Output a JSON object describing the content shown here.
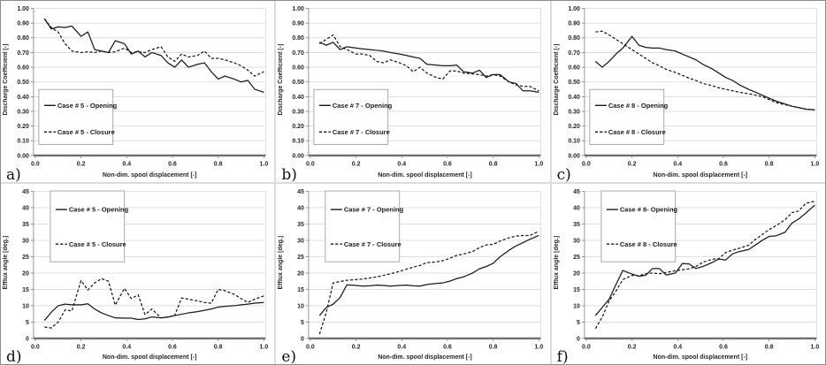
{
  "colors": {
    "line": "#1a1a1a",
    "grid": "#d9d9d9",
    "axis": "#6f6f6f",
    "tick": "#7f7f7f",
    "legend_border": "#a0a0a0",
    "background": "#ffffff"
  },
  "chart_data": [
    {
      "type": "line",
      "panel_label": "a)",
      "xlabel": "Non-dim. spool displacement [-]",
      "ylabel": "Discharge Coefficient [-]",
      "xlim": [
        0.0,
        1.0
      ],
      "ylim": [
        0.0,
        1.0
      ],
      "ystep": 0.1,
      "ydecimals": 2,
      "xticks": [
        "0.0",
        "0.2",
        "0.4",
        "0.6",
        "0.8",
        "1.0"
      ],
      "grid": "horizontal",
      "legend_position": "left-middle",
      "x": [
        0.04,
        0.07,
        0.1,
        0.13,
        0.16,
        0.2,
        0.23,
        0.26,
        0.29,
        0.32,
        0.35,
        0.39,
        0.42,
        0.45,
        0.48,
        0.51,
        0.55,
        0.58,
        0.61,
        0.64,
        0.67,
        0.71,
        0.74,
        0.77,
        0.8,
        0.83,
        0.87,
        0.9,
        0.93,
        0.96,
        1.0
      ],
      "series": [
        {
          "name": "Case # 5 - Opening",
          "style": "solid",
          "values": [
            0.93,
            0.86,
            0.875,
            0.87,
            0.88,
            0.81,
            0.84,
            0.72,
            0.71,
            0.7,
            0.78,
            0.76,
            0.69,
            0.71,
            0.67,
            0.7,
            0.68,
            0.63,
            0.6,
            0.65,
            0.6,
            0.62,
            0.63,
            0.57,
            0.52,
            0.54,
            0.52,
            0.5,
            0.51,
            0.45,
            0.43
          ]
        },
        {
          "name": "Case # 5 - Closure",
          "style": "dashed",
          "values": [
            0.93,
            0.87,
            0.84,
            0.76,
            0.71,
            0.7,
            0.705,
            0.7,
            0.71,
            0.7,
            0.705,
            0.73,
            0.7,
            0.705,
            0.7,
            0.72,
            0.74,
            0.67,
            0.64,
            0.69,
            0.67,
            0.68,
            0.71,
            0.66,
            0.66,
            0.65,
            0.63,
            0.61,
            0.58,
            0.54,
            0.57
          ]
        }
      ]
    },
    {
      "type": "line",
      "panel_label": "b)",
      "xlabel": "Non-dim. spool displacement [-]",
      "ylabel": "Discharge Coefficient [-]",
      "xlim": [
        0.0,
        1.0
      ],
      "ylim": [
        0.0,
        1.0
      ],
      "ystep": 0.1,
      "ydecimals": 2,
      "xticks": [
        "0.0",
        "0.2",
        "0.4",
        "0.6",
        "0.8",
        "1.0"
      ],
      "grid": "horizontal",
      "legend_position": "left-middle",
      "x": [
        0.04,
        0.07,
        0.1,
        0.13,
        0.16,
        0.2,
        0.23,
        0.26,
        0.29,
        0.32,
        0.35,
        0.39,
        0.42,
        0.45,
        0.48,
        0.51,
        0.55,
        0.58,
        0.61,
        0.64,
        0.67,
        0.71,
        0.74,
        0.77,
        0.8,
        0.83,
        0.87,
        0.9,
        0.93,
        0.96,
        1.0
      ],
      "series": [
        {
          "name": "Case # 7 - Opening",
          "style": "solid",
          "values": [
            0.77,
            0.75,
            0.77,
            0.72,
            0.74,
            0.73,
            0.725,
            0.72,
            0.715,
            0.71,
            0.7,
            0.69,
            0.68,
            0.67,
            0.66,
            0.62,
            0.615,
            0.61,
            0.61,
            0.615,
            0.57,
            0.56,
            0.58,
            0.53,
            0.55,
            0.55,
            0.5,
            0.49,
            0.44,
            0.44,
            0.43
          ]
        },
        {
          "name": "Case # 7 - Closure",
          "style": "dashed",
          "values": [
            0.76,
            0.79,
            0.82,
            0.74,
            0.72,
            0.69,
            0.69,
            0.68,
            0.64,
            0.63,
            0.65,
            0.63,
            0.61,
            0.57,
            0.6,
            0.56,
            0.53,
            0.52,
            0.575,
            0.575,
            0.56,
            0.555,
            0.55,
            0.54,
            0.55,
            0.54,
            0.5,
            0.48,
            0.47,
            0.47,
            0.44
          ]
        }
      ]
    },
    {
      "type": "line",
      "panel_label": "c)",
      "xlabel": "Non-dim. spool displacement [-]",
      "ylabel": "Discharge Coefficient [-]",
      "xlim": [
        0.0,
        1.0
      ],
      "ylim": [
        0.0,
        1.0
      ],
      "ystep": 0.1,
      "ydecimals": 2,
      "xticks": [
        "0.0",
        "0.2",
        "0.4",
        "0.6",
        "0.8",
        "1.0"
      ],
      "grid": "horizontal",
      "legend_position": "left-middle",
      "x": [
        0.04,
        0.07,
        0.1,
        0.13,
        0.16,
        0.2,
        0.23,
        0.26,
        0.29,
        0.32,
        0.35,
        0.39,
        0.42,
        0.45,
        0.48,
        0.51,
        0.55,
        0.58,
        0.61,
        0.64,
        0.67,
        0.71,
        0.74,
        0.77,
        0.8,
        0.83,
        0.87,
        0.9,
        0.93,
        0.96,
        1.0
      ],
      "series": [
        {
          "name": "Case # 8 - Opening",
          "style": "solid",
          "values": [
            0.64,
            0.6,
            0.64,
            0.69,
            0.73,
            0.81,
            0.75,
            0.735,
            0.73,
            0.73,
            0.72,
            0.71,
            0.69,
            0.67,
            0.65,
            0.62,
            0.59,
            0.56,
            0.53,
            0.51,
            0.48,
            0.45,
            0.43,
            0.41,
            0.39,
            0.37,
            0.35,
            0.335,
            0.325,
            0.315,
            0.31
          ]
        },
        {
          "name": "Case # 8 - Closure",
          "style": "dashed",
          "values": [
            0.84,
            0.845,
            0.82,
            0.79,
            0.76,
            0.72,
            0.69,
            0.66,
            0.63,
            0.61,
            0.585,
            0.565,
            0.545,
            0.525,
            0.51,
            0.49,
            0.475,
            0.46,
            0.45,
            0.44,
            0.43,
            0.42,
            0.41,
            0.4,
            0.38,
            0.36,
            0.345,
            0.335,
            0.325,
            0.315,
            0.31
          ]
        }
      ]
    },
    {
      "type": "line",
      "panel_label": "d)",
      "xlabel": "Non-dim. spool displacement [-]",
      "ylabel": "Efflux angle [deg.]",
      "xlim": [
        0.0,
        1.0
      ],
      "ylim": [
        0,
        45
      ],
      "ystep": 5,
      "ydecimals": 0,
      "xticks": [
        "0.0",
        "0.2",
        "0.4",
        "0.6",
        "0.8",
        "1.0"
      ],
      "grid": "horizontal",
      "legend_position": "top-left",
      "x": [
        0.04,
        0.07,
        0.1,
        0.13,
        0.16,
        0.2,
        0.23,
        0.26,
        0.29,
        0.32,
        0.35,
        0.39,
        0.42,
        0.45,
        0.48,
        0.51,
        0.55,
        0.58,
        0.61,
        0.64,
        0.67,
        0.71,
        0.74,
        0.77,
        0.8,
        0.83,
        0.87,
        0.9,
        0.93,
        0.96,
        1.0
      ],
      "series": [
        {
          "name": "Case # 5 - Opening",
          "style": "solid",
          "values": [
            5.5,
            8,
            10,
            10.5,
            10.3,
            10.3,
            10.6,
            9,
            7.8,
            7,
            6.3,
            6.2,
            6.2,
            5.8,
            6,
            6.6,
            6.3,
            6.5,
            7,
            7.4,
            7.8,
            8.2,
            8.6,
            9,
            9.6,
            9.8,
            10,
            10.3,
            10.5,
            10.8,
            11
          ]
        },
        {
          "name": "Case # 5 - Closure",
          "style": "dashed",
          "values": [
            3.5,
            3.2,
            5,
            8.7,
            8.4,
            17.7,
            14.8,
            17,
            18.3,
            17.5,
            10.2,
            15.3,
            12.2,
            13.3,
            7.3,
            9,
            6.3,
            6.6,
            7,
            12.4,
            12,
            11.5,
            11,
            10.8,
            15,
            14.6,
            13.5,
            12.2,
            11,
            12,
            13
          ]
        }
      ]
    },
    {
      "type": "line",
      "panel_label": "e)",
      "xlabel": "Non-dim. spool displacement [-]",
      "ylabel": "Efflux angle [deg.]",
      "xlim": [
        0.0,
        1.0
      ],
      "ylim": [
        0,
        45
      ],
      "ystep": 5,
      "ydecimals": 0,
      "xticks": [
        "0.0",
        "0.2",
        "0.4",
        "0.6",
        "0.8",
        "1.0"
      ],
      "grid": "horizontal",
      "legend_position": "top-left",
      "x": [
        0.04,
        0.07,
        0.1,
        0.13,
        0.16,
        0.2,
        0.23,
        0.26,
        0.29,
        0.32,
        0.35,
        0.39,
        0.42,
        0.45,
        0.48,
        0.51,
        0.55,
        0.58,
        0.61,
        0.64,
        0.67,
        0.71,
        0.74,
        0.77,
        0.8,
        0.83,
        0.87,
        0.9,
        0.93,
        0.96,
        1.0
      ],
      "series": [
        {
          "name": "Case # 7 - Opening",
          "style": "solid",
          "values": [
            7,
            9.5,
            10.5,
            12.5,
            16.4,
            16.2,
            16,
            16.1,
            16.3,
            16.2,
            16,
            16.2,
            16.3,
            16.1,
            16,
            16.5,
            16.8,
            17,
            17.5,
            18.3,
            18.8,
            20,
            21.3,
            22,
            23,
            25,
            27,
            28.3,
            29.3,
            30.3,
            31.5
          ]
        },
        {
          "name": "Case # 7 - Closure",
          "style": "dashed",
          "values": [
            1.3,
            8,
            17,
            17.4,
            17.8,
            18,
            18.2,
            18.5,
            18.8,
            19.3,
            19.8,
            20.5,
            21.2,
            21.8,
            22.3,
            23.2,
            23.4,
            23.8,
            24.5,
            25.4,
            25.8,
            26.6,
            27.8,
            28.6,
            28.8,
            29.8,
            30.8,
            31.3,
            31.5,
            31.5,
            32.8
          ]
        }
      ]
    },
    {
      "type": "line",
      "panel_label": "f)",
      "xlabel": "Non-dim. spool displacement [-]",
      "ylabel": "Efflux angle [deg.]",
      "xlim": [
        0.0,
        1.0
      ],
      "ylim": [
        0,
        45
      ],
      "ystep": 5,
      "ydecimals": 0,
      "xticks": [
        "0.0",
        "0.2",
        "0.4",
        "0.6",
        "0.8",
        "1.0"
      ],
      "grid": "horizontal",
      "legend_position": "top-left",
      "x": [
        0.04,
        0.07,
        0.1,
        0.13,
        0.16,
        0.2,
        0.23,
        0.26,
        0.29,
        0.32,
        0.35,
        0.39,
        0.42,
        0.45,
        0.48,
        0.51,
        0.55,
        0.58,
        0.61,
        0.64,
        0.67,
        0.71,
        0.74,
        0.77,
        0.8,
        0.83,
        0.87,
        0.9,
        0.93,
        0.96,
        1.0
      ],
      "series": [
        {
          "name": "Case # 8- Opening",
          "style": "solid",
          "values": [
            7,
            9.5,
            12,
            16.5,
            20.8,
            19.7,
            19,
            19.3,
            21.4,
            21.4,
            19.4,
            20,
            22.9,
            22.8,
            21.4,
            22,
            23.2,
            24.3,
            24,
            25.9,
            26.6,
            27.2,
            28.6,
            30,
            31.2,
            31.4,
            32.5,
            35.3,
            36.6,
            38.3,
            40.8
          ]
        },
        {
          "name": "Case # 8 - Closure",
          "style": "dashed",
          "values": [
            3,
            6.5,
            11.5,
            14.5,
            18,
            19.3,
            19.2,
            19.8,
            20,
            19.8,
            20.2,
            20.7,
            21,
            21.3,
            22,
            23.3,
            24.2,
            24.4,
            26.3,
            27,
            27.6,
            28.5,
            30.3,
            31.8,
            33.3,
            34.5,
            36.3,
            38.5,
            39,
            41.3,
            42
          ]
        }
      ]
    }
  ]
}
